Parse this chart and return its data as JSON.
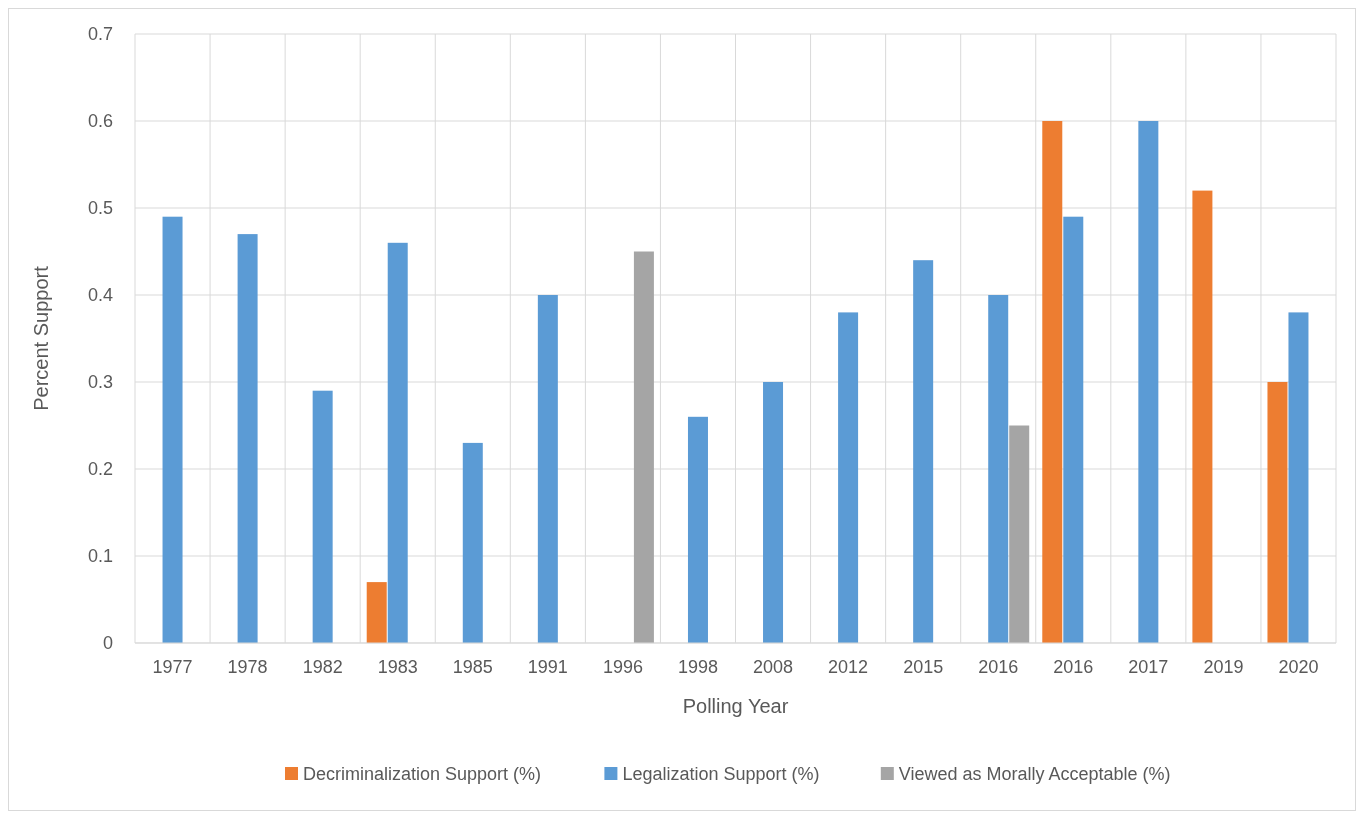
{
  "chart_data": {
    "type": "bar",
    "xlabel": "Polling Year",
    "ylabel": "Percent Support",
    "categories": [
      "1977",
      "1978",
      "1982",
      "1983",
      "1985",
      "1991",
      "1996",
      "1998",
      "2008",
      "2012",
      "2015",
      "2016",
      "2016",
      "2017",
      "2019",
      "2020"
    ],
    "series": [
      {
        "name": "Decriminalization Support (%)",
        "color": "#ed7d31",
        "values": [
          null,
          null,
          null,
          0.07,
          null,
          null,
          null,
          null,
          null,
          null,
          null,
          null,
          0.6,
          null,
          0.52,
          0.3
        ]
      },
      {
        "name": "Legalization Support (%)",
        "color": "#5b9bd5",
        "values": [
          0.49,
          0.47,
          0.29,
          0.46,
          0.23,
          0.4,
          null,
          0.26,
          0.3,
          0.38,
          0.44,
          0.4,
          0.49,
          0.6,
          null,
          0.38
        ]
      },
      {
        "name": "Viewed as Morally Acceptable (%)",
        "color": "#a5a5a5",
        "values": [
          null,
          null,
          null,
          null,
          null,
          null,
          0.45,
          null,
          null,
          null,
          null,
          0.25,
          null,
          null,
          null,
          null
        ]
      }
    ],
    "ylim": [
      0,
      0.7
    ],
    "yticks": [
      0,
      0.1,
      0.2,
      0.3,
      0.4,
      0.5,
      0.6,
      0.7
    ],
    "grid": true,
    "legend": "bottom"
  }
}
